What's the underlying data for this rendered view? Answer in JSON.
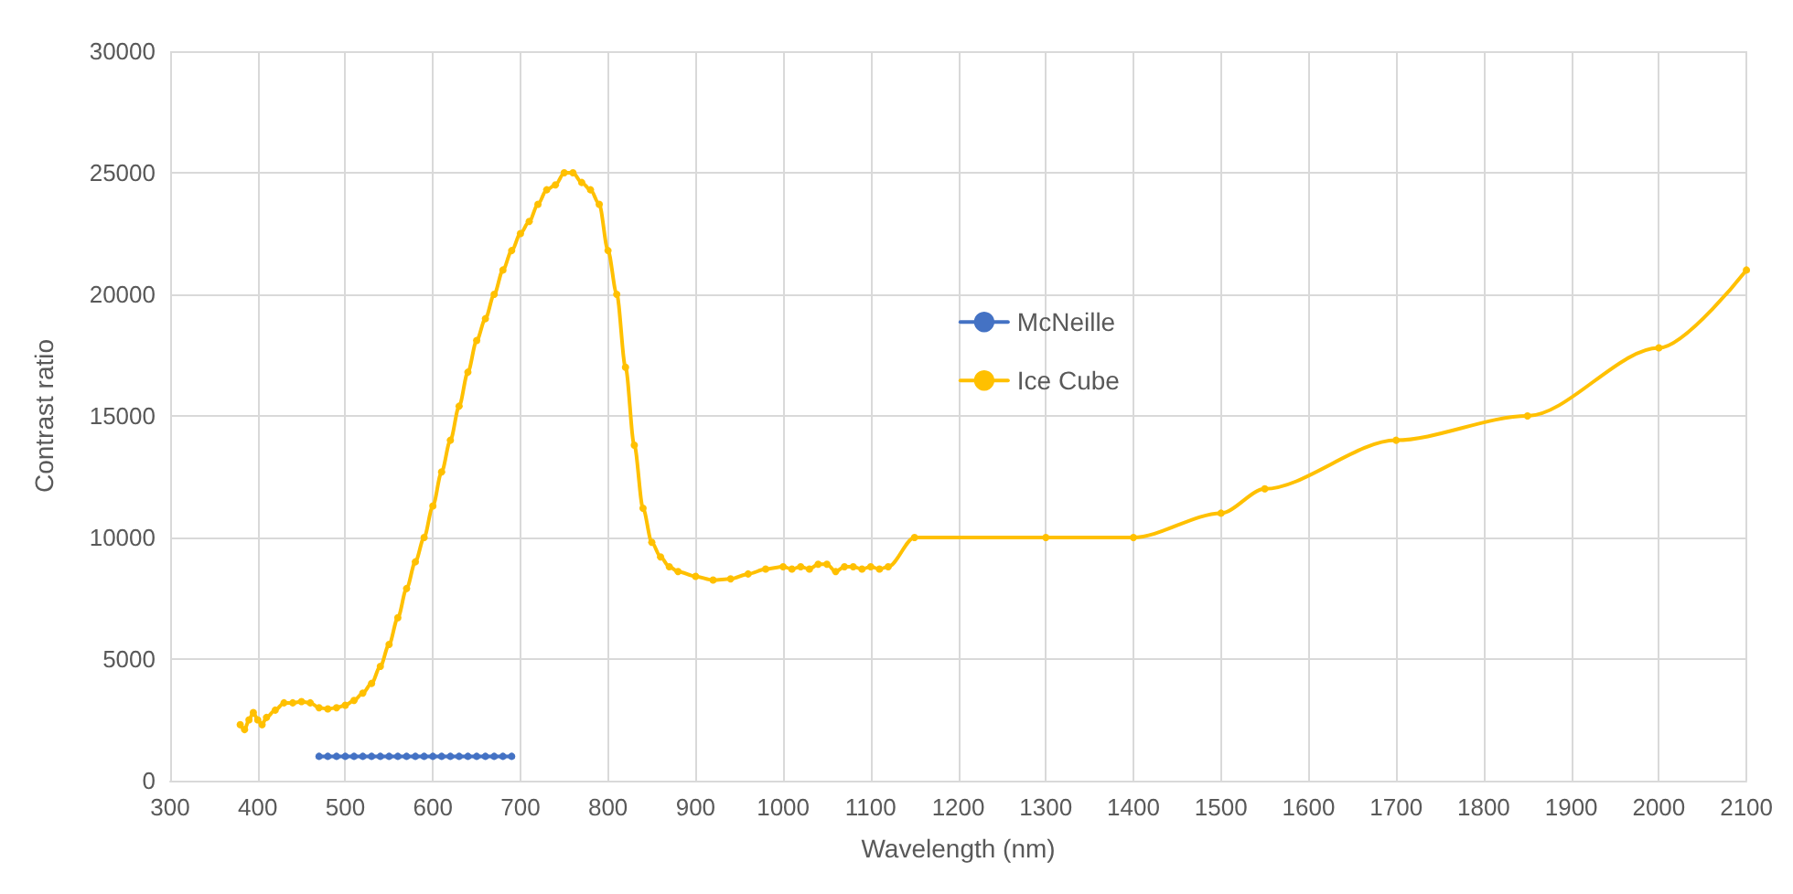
{
  "chart_data": {
    "type": "line",
    "xlabel": "Wavelength (nm)",
    "ylabel": "Contrast ratio",
    "xlim": [
      300,
      2100
    ],
    "xticks": [
      300,
      400,
      500,
      600,
      700,
      800,
      900,
      1000,
      1100,
      1200,
      1300,
      1400,
      1500,
      1600,
      1700,
      1800,
      1900,
      2000,
      2100
    ],
    "ylim": [
      0,
      30000
    ],
    "yticks": [
      0,
      5000,
      10000,
      15000,
      20000,
      25000,
      30000
    ],
    "grid": true,
    "legend": "center",
    "marker": "circle",
    "line_style": "solid",
    "series": [
      {
        "name": "McNeille",
        "color": "#4472c4",
        "x": [
          470,
          480,
          490,
          500,
          510,
          520,
          530,
          540,
          550,
          560,
          570,
          580,
          590,
          600,
          610,
          620,
          630,
          640,
          650,
          660,
          670,
          680,
          690
        ],
        "values": [
          1000,
          1000,
          1000,
          1000,
          1000,
          1000,
          1000,
          1000,
          1000,
          1000,
          1000,
          1000,
          1000,
          1000,
          1000,
          1000,
          1000,
          1000,
          1000,
          1000,
          1000,
          1000,
          1000
        ]
      },
      {
        "name": "Ice Cube",
        "color": "#ffc000",
        "x": [
          380,
          385,
          390,
          395,
          400,
          405,
          410,
          420,
          430,
          440,
          450,
          460,
          470,
          480,
          490,
          500,
          510,
          520,
          530,
          540,
          550,
          560,
          570,
          580,
          590,
          600,
          610,
          620,
          630,
          640,
          650,
          660,
          670,
          680,
          690,
          700,
          710,
          720,
          730,
          740,
          750,
          760,
          770,
          780,
          790,
          800,
          810,
          820,
          830,
          840,
          850,
          860,
          870,
          880,
          900,
          920,
          940,
          960,
          980,
          1000,
          1010,
          1020,
          1030,
          1040,
          1050,
          1060,
          1070,
          1080,
          1090,
          1100,
          1110,
          1120,
          1150,
          1300,
          1400,
          1500,
          1550,
          1700,
          1850,
          2000,
          2100
        ],
        "values": [
          2300,
          2100,
          2500,
          2800,
          2500,
          2300,
          2600,
          2900,
          3200,
          3200,
          3250,
          3200,
          3000,
          2950,
          3000,
          3100,
          3300,
          3600,
          4000,
          4700,
          5600,
          6700,
          7900,
          9000,
          10000,
          11300,
          12700,
          14000,
          15400,
          16800,
          18100,
          19000,
          20000,
          21000,
          21800,
          22500,
          23000,
          23700,
          24300,
          24500,
          25000,
          25000,
          24600,
          24300,
          23700,
          21800,
          20000,
          17000,
          13800,
          11200,
          9800,
          9200,
          8800,
          8600,
          8400,
          8250,
          8300,
          8500,
          8700,
          8800,
          8700,
          8800,
          8700,
          8900,
          8900,
          8600,
          8800,
          8800,
          8700,
          8800,
          8700,
          8800,
          10000,
          10000,
          10000,
          11000,
          12000,
          14000,
          15000,
          17800,
          21000
        ]
      }
    ]
  }
}
